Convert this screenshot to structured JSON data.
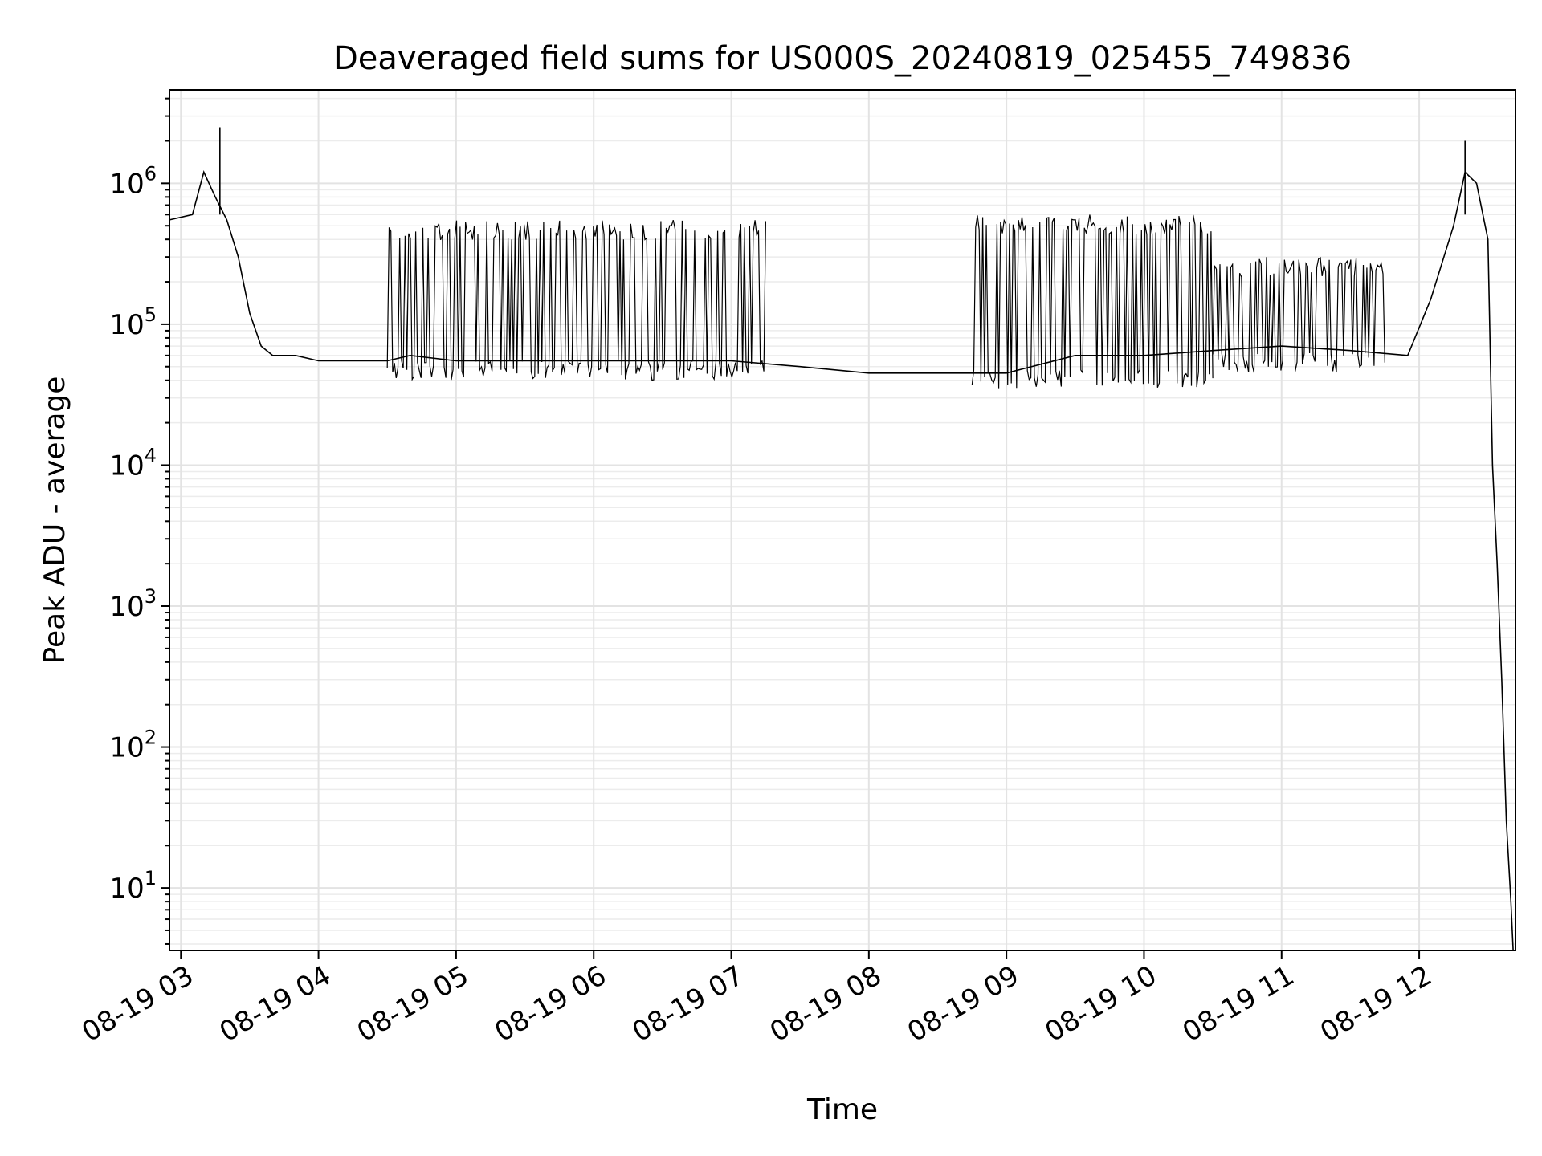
{
  "chart_data": {
    "type": "line",
    "title": "Deaveraged field sums for US000S_20240819_025455_749836",
    "xlabel": "Time",
    "ylabel": "Peak ADU - average",
    "yscale": "log",
    "grid": true,
    "xlim": [
      "2024-08-19T02:55:00",
      "2024-08-19T12:42:00"
    ],
    "ylim": [
      3.6,
      4600000.0
    ],
    "x_tick_labels": [
      "08-19 03",
      "08-19 04",
      "08-19 05",
      "08-19 06",
      "08-19 07",
      "08-19 08",
      "08-19 09",
      "08-19 10",
      "08-19 11",
      "08-19 12"
    ],
    "y_ticks": [
      {
        "base": "10",
        "exp": "1"
      },
      {
        "base": "10",
        "exp": "2"
      },
      {
        "base": "10",
        "exp": "3"
      },
      {
        "base": "10",
        "exp": "4"
      },
      {
        "base": "10",
        "exp": "5"
      },
      {
        "base": "10",
        "exp": "6"
      }
    ],
    "series": [
      {
        "color": "#000000",
        "x": [
          "2024-08-19T02:55:00",
          "2024-08-19T03:05:00",
          "2024-08-19T03:10:00",
          "2024-08-19T03:15:00",
          "2024-08-19T03:20:00",
          "2024-08-19T03:25:00",
          "2024-08-19T03:30:00",
          "2024-08-19T03:35:00",
          "2024-08-19T03:40:00",
          "2024-08-19T03:50:00",
          "2024-08-19T04:00:00",
          "2024-08-19T04:30:00",
          "2024-08-19T04:40:00",
          "2024-08-19T05:00:00",
          "2024-08-19T05:30:00",
          "2024-08-19T06:00:00",
          "2024-08-19T06:30:00",
          "2024-08-19T07:00:00",
          "2024-08-19T07:30:00",
          "2024-08-19T08:00:00",
          "2024-08-19T08:30:00",
          "2024-08-19T09:00:00",
          "2024-08-19T09:30:00",
          "2024-08-19T10:00:00",
          "2024-08-19T10:30:00",
          "2024-08-19T11:00:00",
          "2024-08-19T11:30:00",
          "2024-08-19T11:55:00",
          "2024-08-19T12:05:00",
          "2024-08-19T12:15:00",
          "2024-08-19T12:20:00",
          "2024-08-19T12:25:00",
          "2024-08-19T12:30:00",
          "2024-08-19T12:32:00",
          "2024-08-19T12:34:00",
          "2024-08-19T12:36:00",
          "2024-08-19T12:38:00",
          "2024-08-19T12:40:00",
          "2024-08-19T12:41:00"
        ],
        "y": [
          550000,
          600000,
          1200000,
          800000,
          550000,
          300000,
          120000,
          70000,
          60000,
          60000,
          55000,
          55000,
          60000,
          55000,
          55000,
          55000,
          55000,
          55000,
          50000,
          45000,
          45000,
          45000,
          60000,
          60000,
          65000,
          70000,
          65000,
          60000,
          150000,
          500000,
          1200000,
          1000000,
          400000,
          10000,
          2000,
          300,
          30,
          8,
          3.6
        ],
        "spikes_high": [
          [
            "2024-08-19T03:17:00",
            2500000
          ],
          [
            "2024-08-19T12:20:00",
            2000000
          ]
        ],
        "fluctuation_bands": [
          {
            "from": "2024-08-19T04:30:00",
            "to": "2024-08-19T07:15:00",
            "low": 40000,
            "high": 550000
          },
          {
            "from": "2024-08-19T08:45:00",
            "to": "2024-08-19T10:30:00",
            "low": 35000,
            "high": 600000
          },
          {
            "from": "2024-08-19T10:30:00",
            "to": "2024-08-19T11:45:00",
            "low": 45000,
            "high": 300000
          }
        ]
      }
    ]
  }
}
